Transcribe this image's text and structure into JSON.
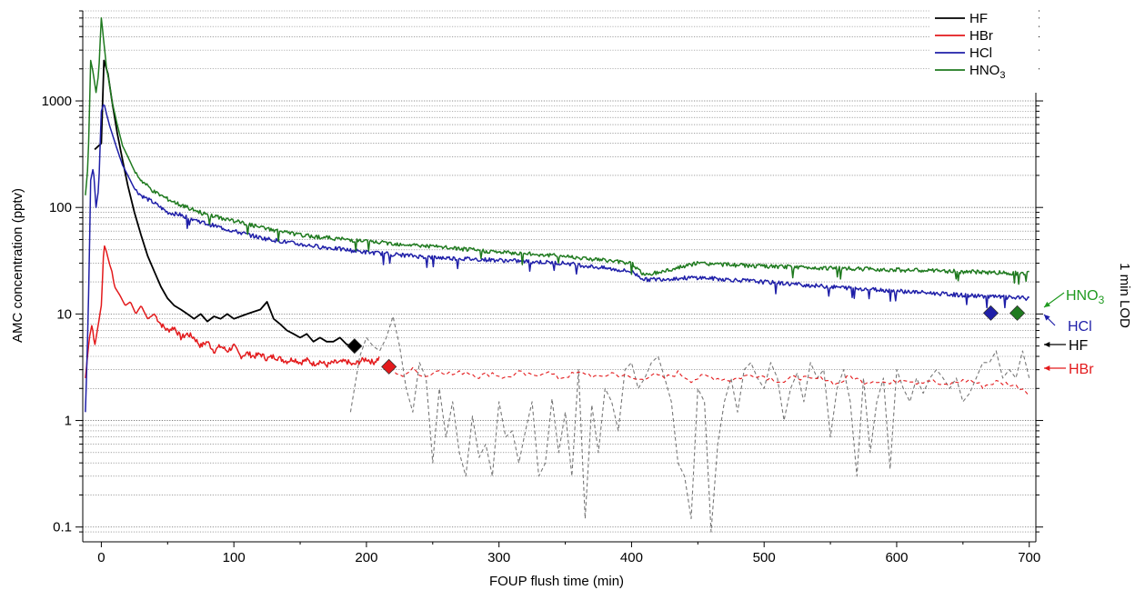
{
  "chart_data": {
    "type": "line",
    "title": "",
    "xlabel": "FOUP flush time (min)",
    "ylabel": "AMC concentration (pptv)",
    "right_label": "1 min LOD",
    "xlim": [
      -14,
      705
    ],
    "ylim": [
      0.085,
      7000
    ],
    "y_scale": "log",
    "grid": "horizontal dotted",
    "x_ticks": [
      0,
      100,
      200,
      300,
      400,
      500,
      600,
      700
    ],
    "x_tick_labels": [
      "0",
      "100",
      "200",
      "300",
      "400",
      "500",
      "600",
      "700"
    ],
    "y_ticks": [
      0.1,
      1,
      10,
      100,
      1000
    ],
    "y_tick_labels": [
      "0.1",
      "1",
      "10",
      "100",
      "1000"
    ],
    "legend_position": "top-right",
    "legend": [
      {
        "label": "HF",
        "sub": "",
        "color": "#000000"
      },
      {
        "label": "HBr",
        "sub": "",
        "color": "#e31a1c"
      },
      {
        "label": "HCl",
        "sub": "",
        "color": "#1f1fa8"
      },
      {
        "label": "HNO",
        "sub": "3",
        "color": "#1f7a1f"
      }
    ],
    "series": [
      {
        "name": "HF",
        "color": "#000000",
        "x": [
          -5,
          0,
          2,
          5,
          8,
          12,
          16,
          20,
          25,
          30,
          35,
          40,
          45,
          50,
          55,
          60,
          65,
          70,
          75,
          80,
          85,
          90,
          95,
          100,
          105,
          110,
          115,
          120,
          125,
          130,
          135,
          140,
          145,
          150,
          155,
          160,
          165,
          170,
          175,
          180,
          185,
          190
        ],
        "y": [
          350,
          400,
          2400,
          1800,
          1000,
          500,
          280,
          160,
          90,
          55,
          35,
          25,
          18,
          14,
          12,
          11,
          10,
          9,
          10,
          8.5,
          9.5,
          9,
          10,
          9,
          9.5,
          10,
          10.5,
          11,
          13,
          9,
          8,
          7,
          6.5,
          6,
          6.5,
          5.5,
          6,
          5.5,
          5.5,
          6,
          5.2,
          5
        ]
      },
      {
        "name": "HF (below LOD)",
        "color": "#777777",
        "x": [
          188,
          195,
          200,
          205,
          210,
          215,
          220,
          225,
          230,
          235,
          240,
          245,
          250,
          255,
          260,
          265,
          270,
          275,
          280,
          285,
          290,
          295,
          300,
          305,
          310,
          315,
          320,
          325,
          330,
          335,
          340,
          345,
          350,
          355,
          360,
          365,
          370,
          375,
          380,
          385,
          390,
          395,
          400,
          405,
          410,
          415,
          420,
          425,
          430,
          435,
          440,
          445,
          450,
          455,
          460,
          465,
          470,
          475,
          480,
          485,
          490,
          495,
          500,
          505,
          510,
          515,
          520,
          525,
          530,
          535,
          540,
          545,
          550,
          555,
          560,
          565,
          570,
          575,
          580,
          585,
          590,
          595,
          600,
          605,
          610,
          615,
          620,
          625,
          630,
          635,
          640,
          645,
          650,
          655,
          660,
          665,
          670,
          675,
          680,
          685,
          690,
          695,
          700
        ],
        "y": [
          1.2,
          4,
          6,
          5,
          4.5,
          6,
          9.5,
          5,
          2,
          1.2,
          3.5,
          2.5,
          0.4,
          2,
          0.7,
          1.5,
          0.5,
          0.3,
          1.1,
          0.45,
          0.6,
          0.3,
          1.5,
          0.7,
          0.8,
          0.4,
          0.8,
          1.5,
          0.3,
          0.4,
          1.6,
          0.5,
          1.2,
          0.3,
          3,
          0.12,
          1.4,
          0.5,
          2,
          1.5,
          0.8,
          3,
          3.5,
          2,
          2.5,
          3.5,
          4,
          2.5,
          1.5,
          0.4,
          0.3,
          0.12,
          2,
          1.5,
          0.09,
          0.6,
          1.5,
          2.5,
          1.2,
          3,
          3.5,
          2.5,
          2,
          3.5,
          2.5,
          1,
          2,
          2.8,
          1.5,
          3.5,
          2.5,
          3,
          0.7,
          2,
          3,
          1.5,
          0.3,
          2.5,
          0.5,
          1.5,
          2.5,
          0.35,
          3,
          2,
          1.5,
          2.5,
          1.8,
          2.5,
          3,
          2.5,
          2,
          2.5,
          1.5,
          1.8,
          2.5,
          3.5,
          3.5,
          4.5,
          2.5,
          3,
          2.5,
          4.5,
          2.5
        ]
      },
      {
        "name": "HBr",
        "color": "#e31a1c",
        "x": [
          -12,
          -9,
          -7,
          -5,
          -3,
          0,
          2,
          4,
          6,
          8,
          10,
          14,
          18,
          22,
          26,
          30,
          35,
          40,
          45,
          50,
          55,
          60,
          65,
          70,
          75,
          80,
          85,
          90,
          95,
          100,
          105,
          110,
          115,
          120,
          125,
          130,
          135,
          140,
          145,
          150,
          155,
          160,
          165,
          170,
          175,
          180,
          185,
          190,
          195,
          200,
          205,
          210
        ],
        "y": [
          2.5,
          6,
          8,
          5,
          7,
          12,
          45,
          38,
          30,
          25,
          18,
          15,
          12,
          13,
          10,
          12,
          9,
          10,
          8,
          7,
          7.5,
          6,
          6.5,
          6,
          5,
          5.5,
          4.5,
          5,
          4.5,
          5,
          4,
          4.3,
          4,
          4.2,
          3.8,
          4,
          3.8,
          3.6,
          3.8,
          3.5,
          3.7,
          3.4,
          3.6,
          3.3,
          3.5,
          3.5,
          3.6,
          3.3,
          3.6,
          3.8,
          3.5,
          3.9
        ]
      },
      {
        "name": "HBr (below LOD)",
        "color": "#e31a1c",
        "x": [
          215,
          225,
          235,
          245,
          255,
          265,
          275,
          285,
          295,
          305,
          315,
          325,
          335,
          345,
          355,
          365,
          375,
          385,
          395,
          405,
          415,
          425,
          435,
          445,
          455,
          465,
          475,
          485,
          495,
          505,
          515,
          525,
          535,
          545,
          555,
          565,
          575,
          585,
          595,
          605,
          615,
          625,
          635,
          645,
          655,
          665,
          675,
          685,
          695,
          700
        ],
        "y": [
          3.4,
          2.6,
          3,
          2.6,
          3,
          2.7,
          2.9,
          2.6,
          2.8,
          2.5,
          2.8,
          2.6,
          2.9,
          2.5,
          2.7,
          2.8,
          2.5,
          2.8,
          2.6,
          2.4,
          2.7,
          2.5,
          2.8,
          2.4,
          2.6,
          2.5,
          2.4,
          2.6,
          2.7,
          2.5,
          2.3,
          2.6,
          2.4,
          2.5,
          2.2,
          2.6,
          2.3,
          2.4,
          2.2,
          2.5,
          2.3,
          2.4,
          2.1,
          2.3,
          2.4,
          2.1,
          2.3,
          2.2,
          2,
          1.8
        ]
      },
      {
        "name": "HCl",
        "color": "#1f1fa8",
        "x": [
          -12,
          -10,
          -8,
          -6,
          -4,
          -2,
          0,
          2,
          4,
          6,
          8,
          12,
          16,
          20,
          25,
          30,
          40,
          50,
          60,
          80,
          100,
          120,
          150,
          200,
          250,
          300,
          350,
          400,
          410,
          450,
          500,
          550,
          600,
          650,
          700
        ],
        "y": [
          1.2,
          8,
          180,
          240,
          100,
          150,
          800,
          950,
          750,
          600,
          500,
          350,
          250,
          200,
          150,
          130,
          110,
          90,
          85,
          70,
          60,
          52,
          45,
          38,
          34,
          32,
          30,
          25,
          21,
          22,
          20,
          18,
          16.5,
          15,
          14
        ]
      },
      {
        "name": "HNO3",
        "color": "#1f7a1f",
        "x": [
          -12,
          -10,
          -8,
          -6,
          -4,
          -2,
          0,
          2,
          4,
          6,
          8,
          12,
          16,
          20,
          25,
          30,
          40,
          50,
          60,
          80,
          100,
          120,
          150,
          200,
          250,
          300,
          350,
          400,
          410,
          450,
          500,
          550,
          600,
          650,
          700
        ],
        "y": [
          130,
          250,
          2400,
          1800,
          1200,
          1800,
          6000,
          3500,
          2000,
          1500,
          1000,
          600,
          380,
          300,
          220,
          180,
          140,
          120,
          105,
          85,
          75,
          65,
          55,
          48,
          43,
          38,
          35,
          30,
          23,
          30,
          28,
          27,
          26,
          25,
          24
        ]
      }
    ],
    "lod_markers": [
      {
        "name": "HF",
        "x": 191,
        "y": 5,
        "color": "#000000"
      },
      {
        "name": "HBr",
        "x": 217,
        "y": 3.2,
        "color": "#e31a1c"
      },
      {
        "name": "HCl",
        "x": 671,
        "y": 10.2,
        "color": "#1f1fa8"
      },
      {
        "name": "HNO3",
        "x": 691,
        "y": 10.2,
        "color": "#1f7a1f"
      }
    ],
    "lod_labels": [
      {
        "label": "HNO",
        "sub": "3",
        "color": "#1f9a1f",
        "y_text": 10
      },
      {
        "label": "HCl",
        "sub": "",
        "color": "#1f1fa8",
        "y_text": 7.2
      },
      {
        "label": "HF",
        "sub": "",
        "color": "#000000",
        "y_text": 4.7
      },
      {
        "label": "HBr",
        "sub": "",
        "color": "#e31a1c",
        "y_text": 2.85
      }
    ]
  }
}
